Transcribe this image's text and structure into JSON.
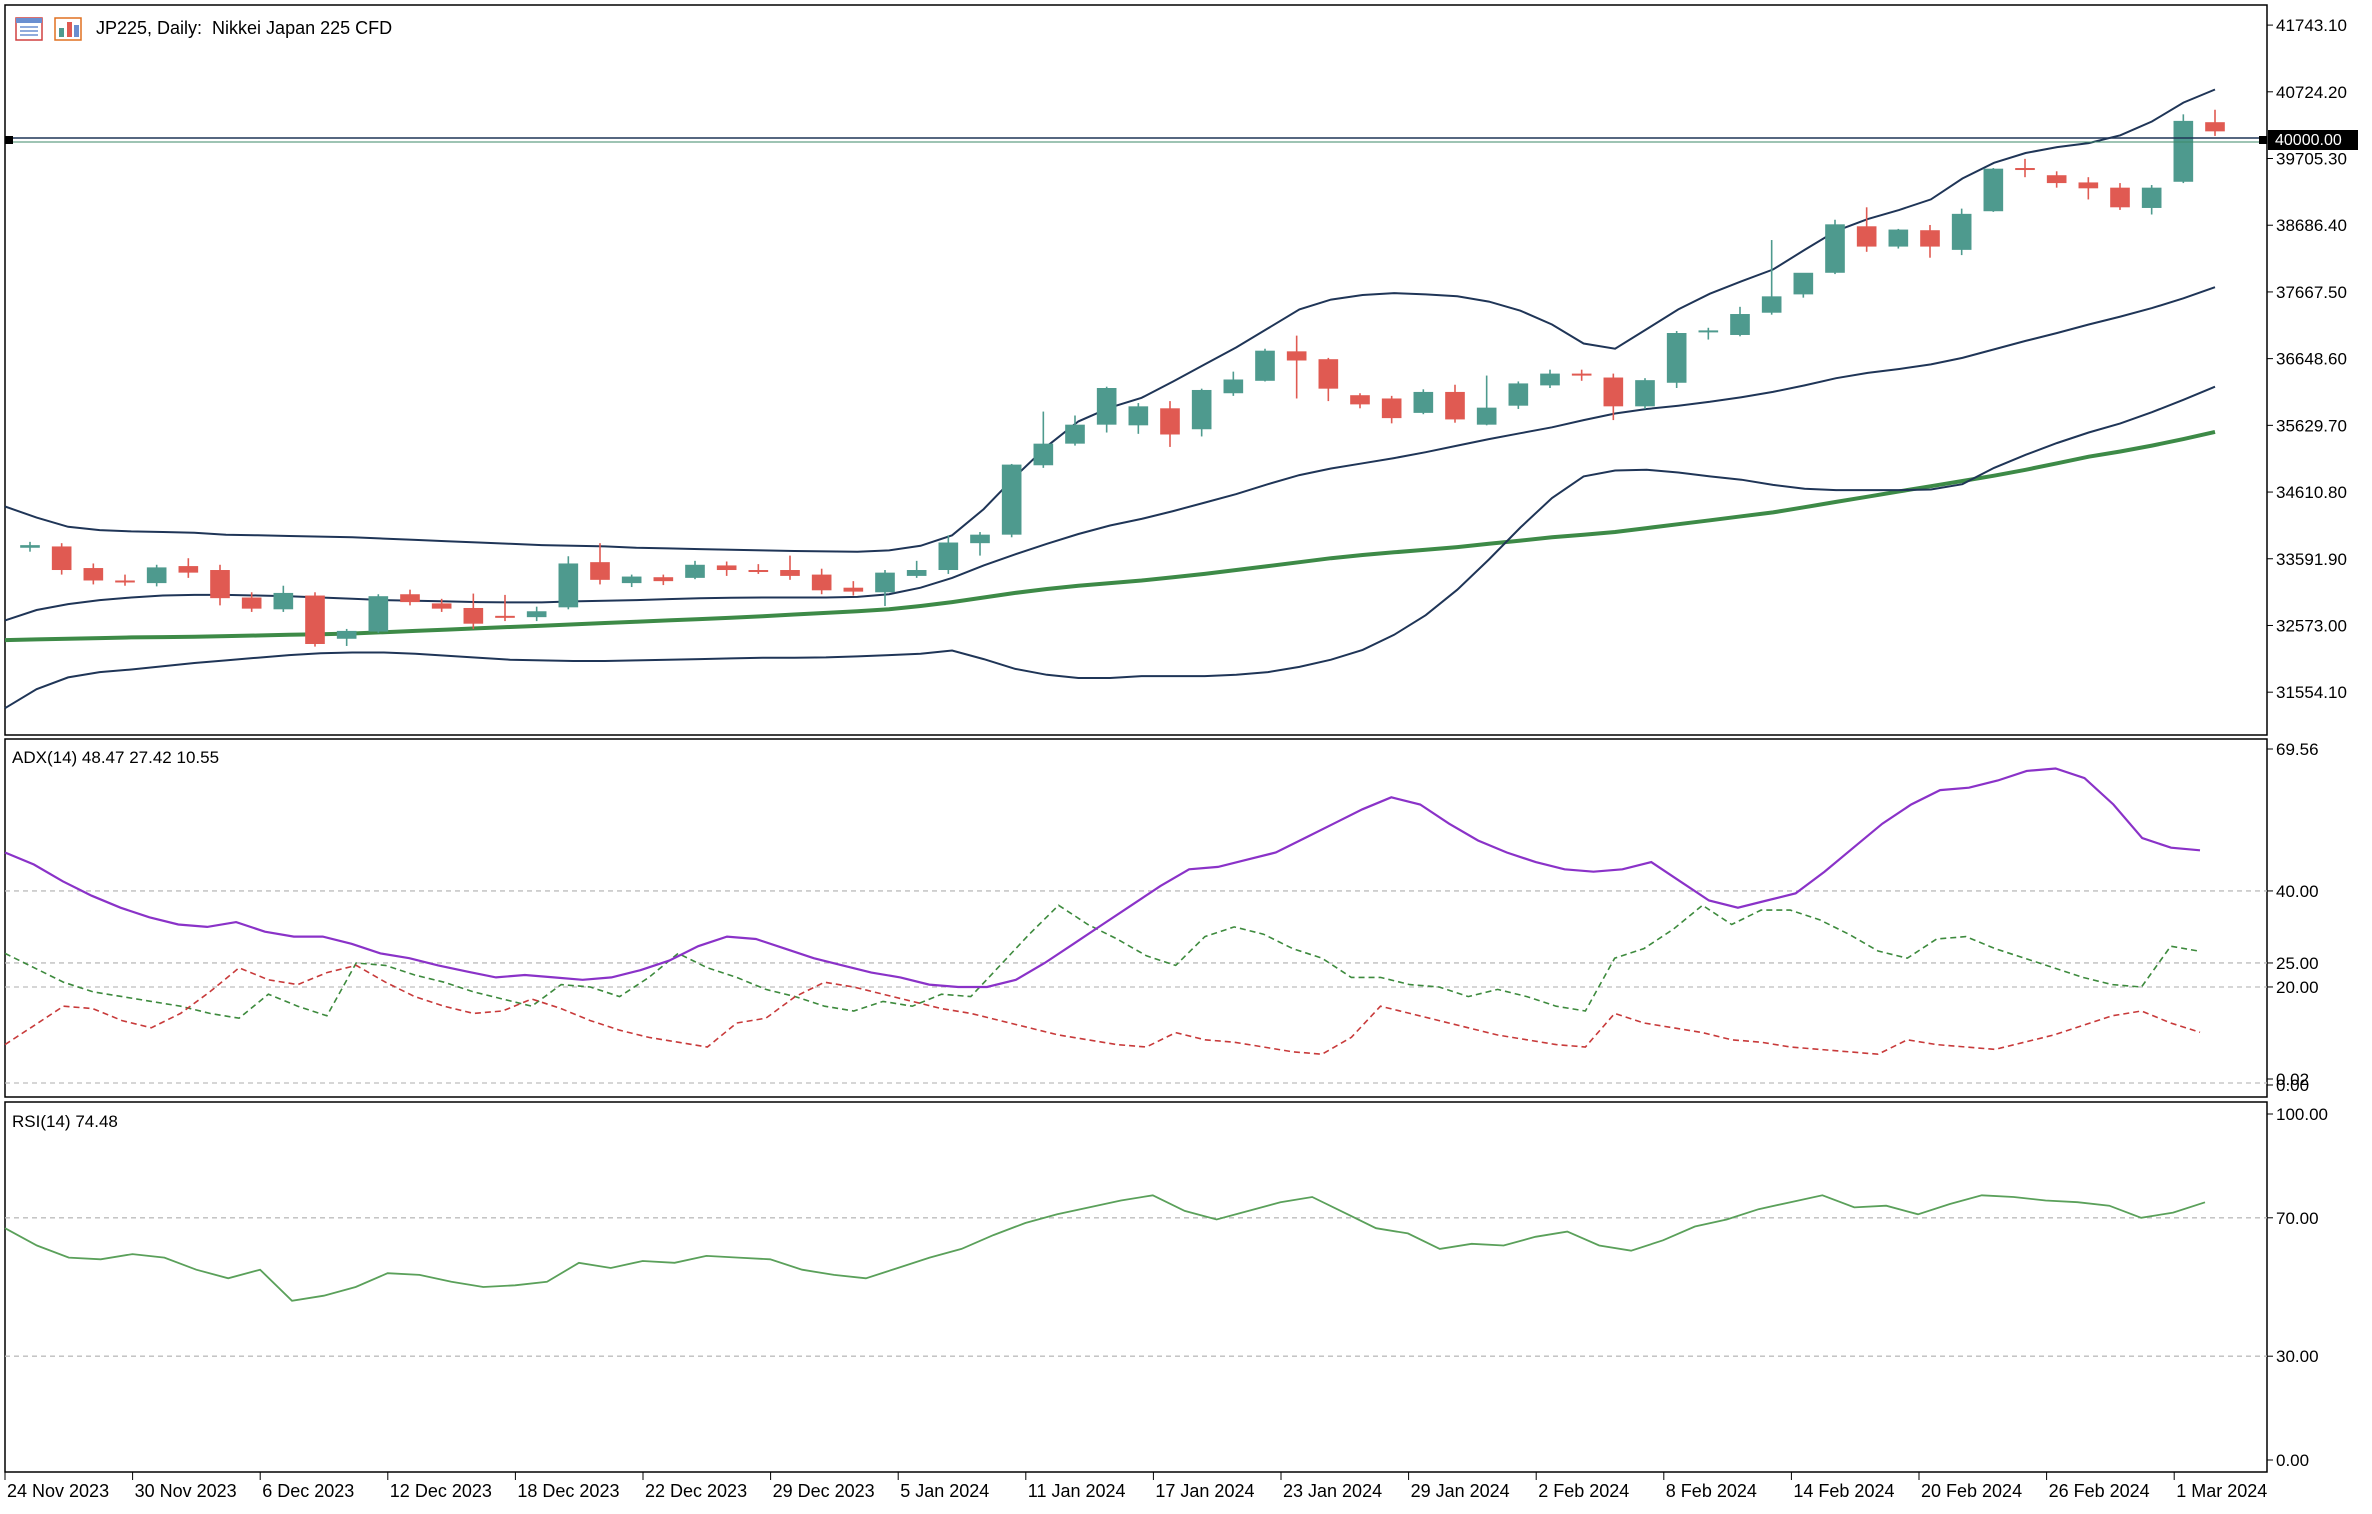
{
  "window": {
    "title": "JP225, Daily:  Nikkei Japan 225 CFD"
  },
  "colors": {
    "bull": "#4e9a8e",
    "bear": "#e05a52",
    "band": "#1f3557",
    "ma": "#3d8a47",
    "adx": "#8a32c8",
    "plus_di": "#3d8a3d",
    "minus_di": "#c83a3a",
    "rsi": "#5aa05a",
    "grid": "#bdbdbd"
  },
  "icons": [
    "menu-icon",
    "chart-objects-icon"
  ],
  "chart_data": [
    {
      "type": "candlestick",
      "name": "price",
      "symbol": "JP225",
      "timeframe": "Daily",
      "description": "Nikkei Japan 225 CFD",
      "yaxis_ticks": [
        "41743.10",
        "40724.20",
        "39705.30",
        "38686.40",
        "37667.50",
        "36648.60",
        "35629.70",
        "34610.80",
        "33591.90",
        "32573.00",
        "31554.10"
      ],
      "ylim": [
        30900,
        42050
      ],
      "price_line": "40000.00",
      "candles": [
        [
          33760,
          33850,
          33700,
          33800
        ],
        [
          33780,
          33830,
          33350,
          33420
        ],
        [
          33450,
          33520,
          33200,
          33260
        ],
        [
          33260,
          33350,
          33180,
          33240
        ],
        [
          33220,
          33500,
          33170,
          33460
        ],
        [
          33480,
          33600,
          33300,
          33380
        ],
        [
          33420,
          33500,
          32880,
          32990
        ],
        [
          33000,
          33080,
          32780,
          32830
        ],
        [
          32820,
          33180,
          32780,
          33070
        ],
        [
          33030,
          33080,
          32250,
          32290
        ],
        [
          32370,
          32520,
          32260,
          32490
        ],
        [
          32480,
          33050,
          32460,
          33020
        ],
        [
          33050,
          33120,
          32880,
          32930
        ],
        [
          32910,
          32980,
          32780,
          32830
        ],
        [
          32840,
          33060,
          32520,
          32600
        ],
        [
          32720,
          33040,
          32640,
          32690
        ],
        [
          32700,
          32860,
          32640,
          32790
        ],
        [
          32850,
          33630,
          32820,
          33520
        ],
        [
          33540,
          33830,
          33200,
          33270
        ],
        [
          33220,
          33350,
          33160,
          33320
        ],
        [
          33310,
          33350,
          33190,
          33250
        ],
        [
          33300,
          33560,
          33280,
          33500
        ],
        [
          33490,
          33550,
          33330,
          33420
        ],
        [
          33420,
          33510,
          33360,
          33390
        ],
        [
          33420,
          33640,
          33270,
          33330
        ],
        [
          33350,
          33440,
          33050,
          33110
        ],
        [
          33150,
          33250,
          33030,
          33090
        ],
        [
          33080,
          33420,
          32870,
          33380
        ],
        [
          33330,
          33560,
          33300,
          33420
        ],
        [
          33420,
          33950,
          33360,
          33840
        ],
        [
          33830,
          34000,
          33640,
          33960
        ],
        [
          33960,
          35040,
          33920,
          35030
        ],
        [
          35020,
          35840,
          34980,
          35350
        ],
        [
          35350,
          35780,
          35320,
          35640
        ],
        [
          35640,
          36220,
          35520,
          36200
        ],
        [
          35630,
          35970,
          35500,
          35920
        ],
        [
          35890,
          36000,
          35300,
          35490
        ],
        [
          35570,
          36190,
          35460,
          36170
        ],
        [
          36120,
          36450,
          36080,
          36330
        ],
        [
          36310,
          36800,
          36300,
          36770
        ],
        [
          36760,
          37000,
          36040,
          36620
        ],
        [
          36640,
          36660,
          36000,
          36190
        ],
        [
          36090,
          36120,
          35890,
          35950
        ],
        [
          36040,
          36080,
          35660,
          35740
        ],
        [
          35820,
          36180,
          35800,
          36140
        ],
        [
          36140,
          36250,
          35670,
          35720
        ],
        [
          35640,
          36390,
          35630,
          35900
        ],
        [
          35930,
          36300,
          35880,
          36270
        ],
        [
          36240,
          36480,
          36200,
          36420
        ],
        [
          36420,
          36480,
          36310,
          36390
        ],
        [
          36360,
          36420,
          35710,
          35920
        ],
        [
          35920,
          36350,
          35880,
          36320
        ],
        [
          36280,
          37070,
          36200,
          37040
        ],
        [
          37050,
          37120,
          36940,
          37080
        ],
        [
          37010,
          37440,
          36990,
          37330
        ],
        [
          37350,
          38460,
          37320,
          37600
        ],
        [
          37630,
          37930,
          37580,
          37960
        ],
        [
          37960,
          38770,
          37940,
          38700
        ],
        [
          38670,
          38960,
          38280,
          38360
        ],
        [
          38360,
          38630,
          38330,
          38620
        ],
        [
          38610,
          38690,
          38190,
          38360
        ],
        [
          38310,
          38940,
          38230,
          38860
        ],
        [
          38900,
          39560,
          38890,
          39550
        ],
        [
          39560,
          39700,
          39420,
          39540
        ],
        [
          39450,
          39510,
          39260,
          39330
        ],
        [
          39340,
          39420,
          39080,
          39250
        ],
        [
          39260,
          39330,
          38920,
          38960
        ],
        [
          38950,
          39300,
          38850,
          39260
        ],
        [
          39350,
          40380,
          39330,
          40280
        ],
        [
          40260,
          40450,
          40050,
          40120
        ]
      ],
      "bollinger_upper": [
        34390,
        34220,
        34080,
        34030,
        34010,
        34000,
        33990,
        33960,
        33950,
        33940,
        33930,
        33920,
        33900,
        33880,
        33860,
        33840,
        33820,
        33800,
        33790,
        33780,
        33760,
        33750,
        33740,
        33730,
        33720,
        33710,
        33705,
        33700,
        33720,
        33790,
        33950,
        34350,
        34850,
        35310,
        35690,
        35900,
        36050,
        36300,
        36560,
        36820,
        37110,
        37400,
        37550,
        37620,
        37650,
        37630,
        37600,
        37520,
        37380,
        37170,
        36880,
        36800,
        37100,
        37400,
        37640,
        37830,
        38010,
        38310,
        38600,
        38780,
        38920,
        39080,
        39400,
        39640,
        39790,
        39880,
        39940,
        40060,
        40270,
        40560,
        40760
      ],
      "bollinger_middle": [
        32650,
        32810,
        32900,
        32960,
        33000,
        33030,
        33040,
        33040,
        33030,
        33020,
        33000,
        32980,
        32960,
        32950,
        32940,
        32930,
        32925,
        32925,
        32940,
        32950,
        32960,
        32975,
        32990,
        32995,
        33000,
        33000,
        33000,
        33010,
        33050,
        33150,
        33300,
        33490,
        33660,
        33820,
        33970,
        34100,
        34200,
        34320,
        34450,
        34580,
        34730,
        34870,
        34970,
        35050,
        35130,
        35220,
        35320,
        35420,
        35510,
        35600,
        35710,
        35810,
        35880,
        35930,
        35990,
        36060,
        36140,
        36240,
        36350,
        36430,
        36490,
        36560,
        36660,
        36790,
        36920,
        37040,
        37170,
        37290,
        37420,
        37570,
        37740
      ],
      "bollinger_lower": [
        31310,
        31600,
        31780,
        31860,
        31900,
        31950,
        32000,
        32040,
        32080,
        32120,
        32150,
        32160,
        32160,
        32140,
        32110,
        32080,
        32050,
        32040,
        32030,
        32030,
        32040,
        32050,
        32060,
        32070,
        32080,
        32080,
        32085,
        32100,
        32120,
        32140,
        32190,
        32060,
        31910,
        31820,
        31770,
        31770,
        31800,
        31800,
        31800,
        31820,
        31860,
        31940,
        32050,
        32200,
        32430,
        32730,
        33120,
        33580,
        34070,
        34520,
        34850,
        34940,
        34950,
        34910,
        34850,
        34800,
        34720,
        34660,
        34640,
        34640,
        34640,
        34650,
        34730,
        34980,
        35180,
        35360,
        35520,
        35660,
        35830,
        36020,
        36220
      ],
      "moving_average": [
        32350,
        32360,
        32370,
        32380,
        32390,
        32395,
        32400,
        32410,
        32420,
        32430,
        32440,
        32450,
        32470,
        32490,
        32510,
        32530,
        32550,
        32570,
        32590,
        32610,
        32630,
        32650,
        32670,
        32690,
        32715,
        32740,
        32765,
        32790,
        32820,
        32870,
        32930,
        33000,
        33070,
        33130,
        33180,
        33220,
        33260,
        33310,
        33360,
        33420,
        33480,
        33540,
        33600,
        33650,
        33690,
        33730,
        33770,
        33820,
        33870,
        33920,
        33960,
        34000,
        34060,
        34120,
        34180,
        34240,
        34300,
        34380,
        34460,
        34540,
        34620,
        34700,
        34780,
        34860,
        34950,
        35050,
        35150,
        35230,
        35320,
        35420,
        35530
      ]
    },
    {
      "type": "line",
      "name": "ADX(14)",
      "label_values": [
        "48.47",
        "27.42",
        "10.55"
      ],
      "yaxis_ticks": [
        "69.56",
        "40.00",
        "25.00",
        "20.00",
        "0.02",
        "0.00"
      ],
      "levels": [
        40,
        25,
        20
      ],
      "ylim": [
        0,
        69.56
      ],
      "series": [
        {
          "name": "ADX",
          "values": [
            48,
            45.5,
            42,
            39,
            36.5,
            34.5,
            33,
            32.5,
            33.5,
            31.5,
            30.5,
            30.5,
            29,
            27,
            26,
            24.5,
            23.2,
            22,
            22.5,
            22,
            21.5,
            22,
            23.5,
            25.5,
            28.5,
            30.5,
            30,
            28,
            26,
            24.5,
            23,
            22,
            20.5,
            20,
            20,
            21.5,
            25,
            29,
            33,
            37,
            41,
            44.5,
            45,
            46.5,
            48,
            51,
            54,
            57,
            59.5,
            58,
            54,
            50.5,
            48,
            46,
            44.5,
            44,
            44.5,
            46,
            42,
            38,
            36.5,
            38,
            39.5,
            44,
            49,
            54,
            58,
            61,
            61.5,
            63,
            65,
            65.5,
            63.5,
            58,
            51,
            49,
            48.47
          ]
        },
        {
          "name": "+DI",
          "values": [
            27,
            24,
            21,
            19,
            18,
            17,
            16,
            14.5,
            13.5,
            18.5,
            16,
            14,
            25,
            24.5,
            22.5,
            21,
            19,
            17.5,
            16,
            20.5,
            20,
            18,
            22,
            27,
            24,
            22,
            19.5,
            18,
            16,
            15,
            17,
            16,
            18.5,
            18,
            24.5,
            31,
            37,
            33,
            30,
            26.5,
            24.5,
            30.5,
            32.5,
            31,
            28,
            26,
            22,
            22,
            20.5,
            20,
            18,
            19.5,
            18,
            16,
            15,
            26,
            28,
            32,
            37,
            33,
            36,
            36,
            34,
            31,
            27.5,
            26,
            30,
            30.5,
            28,
            26,
            24,
            22,
            20.5,
            20,
            28.5,
            27.42
          ]
        },
        {
          "name": "-DI",
          "values": [
            8,
            12,
            16,
            15.5,
            13,
            11.5,
            14.5,
            19,
            24,
            21.5,
            20.5,
            23,
            24.5,
            21,
            18,
            16,
            14.5,
            15,
            17.5,
            15.5,
            13,
            11,
            9.5,
            8.5,
            7.5,
            12.5,
            13.5,
            18,
            21,
            20,
            18.5,
            17,
            15.5,
            14.5,
            13,
            11.5,
            10,
            9,
            8,
            7.5,
            10.5,
            9,
            8.5,
            7.5,
            6.5,
            6,
            9.5,
            16,
            14.5,
            13,
            11.5,
            10,
            9,
            8,
            7.5,
            14.5,
            12.5,
            11.5,
            10.5,
            9,
            8.5,
            7.5,
            7,
            6.5,
            6,
            9,
            8,
            7.5,
            7,
            8.5,
            10,
            12,
            14,
            15,
            12.5,
            10.55
          ]
        }
      ]
    },
    {
      "type": "line",
      "name": "RSI(14)",
      "label_values": [
        "74.48"
      ],
      "yaxis_ticks": [
        "100.00",
        "70.00",
        "30.00",
        "0.00"
      ],
      "levels": [
        70,
        30
      ],
      "ylim": [
        0,
        100
      ],
      "series": [
        {
          "name": "RSI",
          "values": [
            67,
            62,
            58.5,
            58,
            59.5,
            58.5,
            55,
            52.5,
            55,
            46,
            47.5,
            50,
            54,
            53.5,
            51.5,
            50,
            50.5,
            51.5,
            57,
            55.5,
            57.5,
            57,
            59,
            58.5,
            58,
            55,
            53.5,
            52.5,
            55.5,
            58.5,
            61,
            65,
            68.5,
            71,
            73,
            75,
            76.5,
            72,
            69.5,
            72,
            74.5,
            76,
            71.5,
            67,
            65.5,
            61,
            62.5,
            62,
            64.5,
            66,
            62,
            60.5,
            63.5,
            67.5,
            69.5,
            72.5,
            74.5,
            76.5,
            73,
            73.5,
            71,
            74,
            76.5,
            76,
            75,
            74.5,
            73.5,
            70,
            71.5,
            74.48
          ]
        }
      ]
    }
  ],
  "xaxis": {
    "labels": [
      "24 Nov 2023",
      "30 Nov 2023",
      "6 Dec 2023",
      "12 Dec 2023",
      "18 Dec 2023",
      "22 Dec 2023",
      "29 Dec 2023",
      "5 Jan 2024",
      "11 Jan 2024",
      "17 Jan 2024",
      "23 Jan 2024",
      "29 Jan 2024",
      "2 Feb 2024",
      "8 Feb 2024",
      "14 Feb 2024",
      "20 Feb 2024",
      "26 Feb 2024",
      "1 Mar 2024"
    ]
  }
}
